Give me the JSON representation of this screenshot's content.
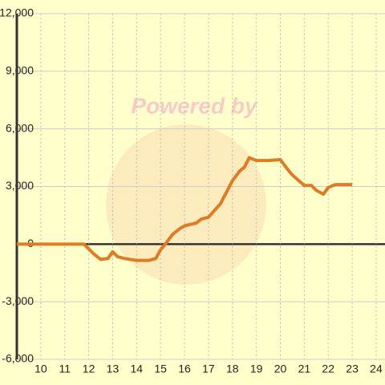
{
  "chart_data": {
    "type": "line",
    "watermark": "Powered by",
    "x": [
      9,
      11.8,
      12.2,
      12.5,
      12.8,
      13.0,
      13.2,
      13.5,
      14.0,
      14.5,
      14.8,
      15.0,
      15.2,
      15.5,
      15.8,
      16.0,
      16.5,
      16.7,
      17.0,
      17.5,
      18.0,
      18.3,
      18.5,
      18.7,
      19.0,
      19.5,
      20.0,
      20.3,
      20.5,
      21.0,
      21.3,
      21.5,
      21.8,
      22.0,
      22.3,
      23.0
    ],
    "series": [
      {
        "color": "#e07b24",
        "values": [
          0,
          0,
          -500,
          -800,
          -750,
          -400,
          -650,
          -750,
          -850,
          -850,
          -750,
          -300,
          0,
          500,
          800,
          950,
          1100,
          1300,
          1400,
          2100,
          3300,
          3800,
          4000,
          4500,
          4350,
          4350,
          4400,
          3900,
          3600,
          3050,
          3050,
          2800,
          2600,
          2950,
          3100,
          3100
        ]
      }
    ],
    "xlim": [
      9,
      24.37
    ],
    "xticks": [
      10,
      11,
      12,
      13,
      14,
      15,
      16,
      17,
      18,
      19,
      20,
      21,
      22,
      23,
      24
    ],
    "ylim": [
      -6000,
      12000
    ],
    "yticks": [
      {
        "value": -6000,
        "label": "-6,000"
      },
      {
        "value": -3000,
        "label": "-3,000"
      },
      0,
      {
        "value": 3000,
        "label": "3,000"
      },
      {
        "value": 6000,
        "label": "6,000"
      },
      {
        "value": 9000,
        "label": "9,000"
      },
      {
        "value": 12000,
        "label": "12,000"
      }
    ],
    "grid": true
  }
}
